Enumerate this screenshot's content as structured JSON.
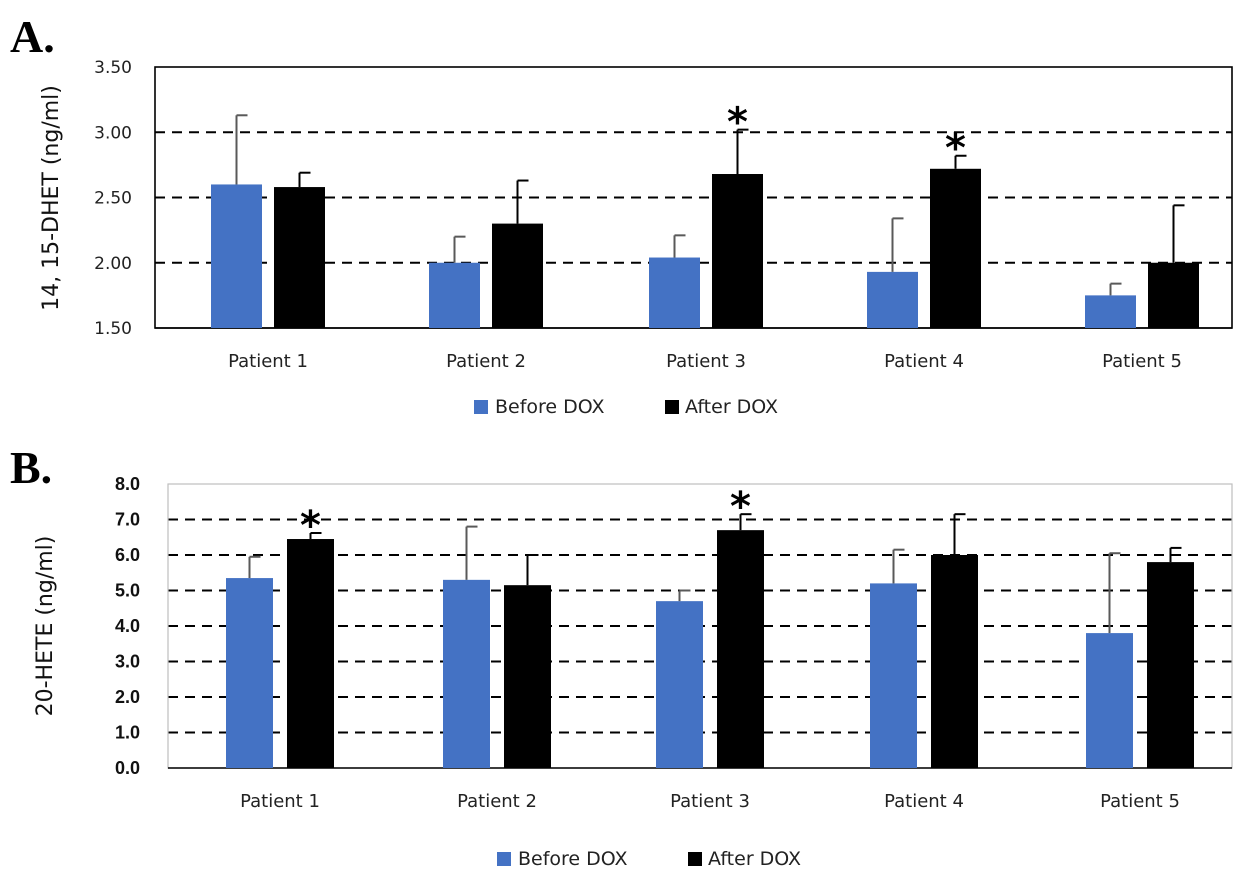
{
  "colors": {
    "before": "#4472c4",
    "after": "#000000",
    "grid": "#000000",
    "errorbar_before": "#595959",
    "errorbar_after": "#000000"
  },
  "chart_data": [
    {
      "panel": "A.",
      "type": "bar",
      "ylabel": "14, 15-DHET (ng/ml)",
      "ylim": [
        1.5,
        3.5
      ],
      "yticks": [
        "1.50",
        "2.00",
        "2.50",
        "3.00",
        "3.50"
      ],
      "grid": "dashed",
      "categories": [
        "Patient 1",
        "Patient 2",
        "Patient 3",
        "Patient 4",
        "Patient 5"
      ],
      "series": [
        {
          "name": "Before DOX",
          "values": [
            2.6,
            2.0,
            2.04,
            1.93,
            1.75
          ],
          "errors": [
            0.53,
            0.2,
            0.17,
            0.41,
            0.09
          ]
        },
        {
          "name": "After DOX",
          "values": [
            2.58,
            2.3,
            2.68,
            2.72,
            2.0
          ],
          "errors": [
            0.11,
            0.33,
            0.34,
            0.1,
            0.44
          ]
        }
      ],
      "significance": [
        {
          "category": "Patient 3",
          "series": "After DOX",
          "mark": "*"
        },
        {
          "category": "Patient 4",
          "series": "After DOX",
          "mark": "*"
        }
      ],
      "legend": [
        "Before DOX",
        "After DOX"
      ],
      "legend_position": "bottom"
    },
    {
      "panel": "B.",
      "type": "bar",
      "ylabel": "20-HETE (ng/ml)",
      "ylim": [
        0.0,
        8.0
      ],
      "yticks": [
        "0.0",
        "1.0",
        "2.0",
        "3.0",
        "4.0",
        "5.0",
        "6.0",
        "7.0",
        "8.0"
      ],
      "grid": "dashed",
      "categories": [
        "Patient 1",
        "Patient 2",
        "Patient 3",
        "Patient 4",
        "Patient 5"
      ],
      "series": [
        {
          "name": "Before DOX",
          "values": [
            5.35,
            5.3,
            4.7,
            5.2,
            3.8
          ],
          "errors": [
            0.6,
            1.5,
            0.3,
            0.95,
            2.25
          ]
        },
        {
          "name": "After DOX",
          "values": [
            6.45,
            5.15,
            6.7,
            6.0,
            5.8
          ],
          "errors": [
            0.17,
            0.85,
            0.45,
            1.15,
            0.4
          ]
        }
      ],
      "significance": [
        {
          "category": "Patient 1",
          "series": "After DOX",
          "mark": "*"
        },
        {
          "category": "Patient 3",
          "series": "After DOX",
          "mark": "*"
        }
      ],
      "legend": [
        "Before DOX",
        "After DOX"
      ],
      "legend_position": "bottom"
    }
  ]
}
